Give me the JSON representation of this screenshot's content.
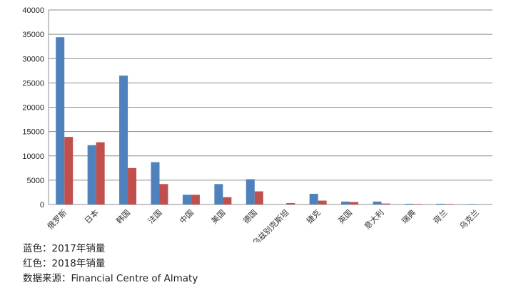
{
  "chart_data": {
    "type": "bar",
    "categories": [
      "俄罗斯",
      "日本",
      "韩国",
      "法国",
      "中国",
      "美国",
      "德国",
      "乌兹别克斯坦",
      "捷克",
      "英国",
      "意大利",
      "瑞典",
      "荷兰",
      "乌克兰"
    ],
    "series": [
      {
        "values": [
          34400,
          12200,
          26500,
          8700,
          2000,
          4200,
          5200,
          0,
          2200,
          600,
          600,
          150,
          150,
          100
        ]
      },
      {
        "values": [
          13900,
          12800,
          7500,
          4200,
          2000,
          1500,
          2700,
          300,
          800,
          500,
          200,
          100,
          100,
          0
        ]
      }
    ],
    "ylim": [
      0,
      40000
    ],
    "yticks": [
      0,
      5000,
      10000,
      15000,
      20000,
      25000,
      30000,
      35000,
      40000
    ],
    "grid": true,
    "legend": "none",
    "colors": [
      "#4f81bd",
      "#c0504d"
    ]
  },
  "notes": {
    "line1": "蓝色：2017年销量",
    "line2": "红色：2018年销量",
    "line3": "数据来源：Financial Centre of Almaty"
  }
}
